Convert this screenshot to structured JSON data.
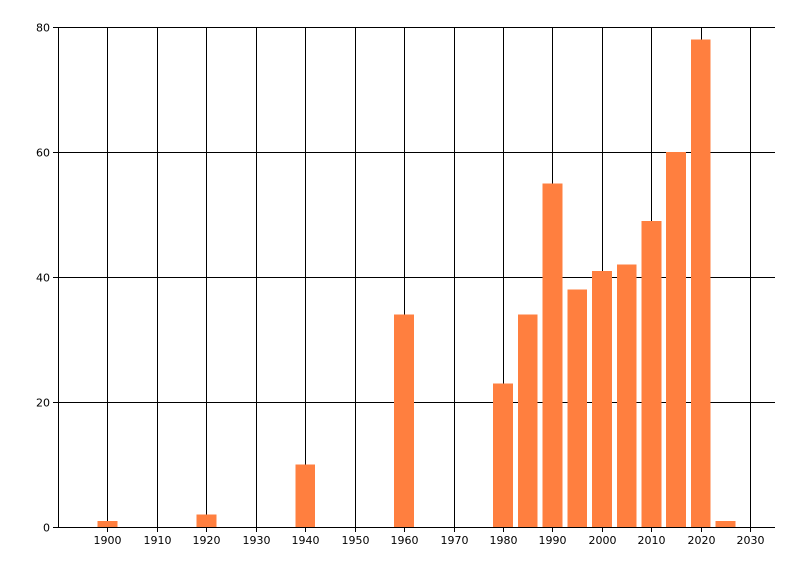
{
  "chart_data": {
    "type": "bar",
    "title": "",
    "xlabel": "",
    "ylabel": "",
    "x": [
      1900,
      1920,
      1940,
      1960,
      1980,
      1985,
      1990,
      1995,
      2000,
      2005,
      2010,
      2015,
      2020,
      2025
    ],
    "values": [
      1,
      2,
      10,
      34,
      23,
      34,
      55,
      38,
      41,
      42,
      49,
      60,
      78,
      1
    ],
    "xlim": [
      1890,
      2035
    ],
    "ylim": [
      0,
      80
    ],
    "x_ticks": [
      1900,
      1910,
      1920,
      1930,
      1940,
      1950,
      1960,
      1970,
      1980,
      1990,
      2000,
      2010,
      2020,
      2030
    ],
    "y_ticks": [
      0,
      20,
      40,
      60,
      80
    ],
    "bar_width_years": 4,
    "grid": true,
    "legend": "none",
    "colors": {
      "bar": "#ff7f3f",
      "grid": "#000000",
      "background": "#ffffff"
    }
  }
}
